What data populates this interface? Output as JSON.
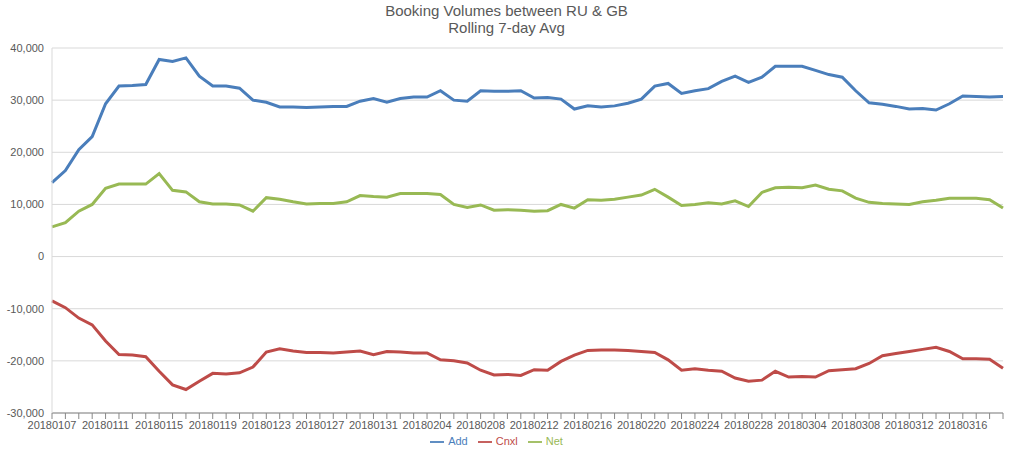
{
  "chart_data": {
    "type": "line",
    "title": "Booking Volumes between RU & GB",
    "subtitle": "Rolling 7-day Avg",
    "categories": [
      "20180107",
      null,
      null,
      null,
      "20180111",
      null,
      null,
      null,
      "20180115",
      null,
      null,
      null,
      "20180119",
      null,
      null,
      null,
      "20180123",
      null,
      null,
      null,
      "20180127",
      null,
      null,
      null,
      "20180131",
      null,
      null,
      null,
      "20180204",
      null,
      null,
      null,
      "20180208",
      null,
      null,
      null,
      "20180212",
      null,
      null,
      null,
      "20180216",
      null,
      null,
      null,
      "20180220",
      null,
      null,
      null,
      "20180224",
      null,
      null,
      null,
      "20180228",
      null,
      null,
      null,
      "20180304",
      null,
      null,
      null,
      "20180308",
      null,
      null,
      null,
      "20180312",
      null,
      null,
      null,
      "20180316",
      null,
      null,
      null
    ],
    "series": [
      {
        "name": "Add",
        "color": "#4a7ebb",
        "values": [
          14200,
          16500,
          20500,
          23000,
          29300,
          32700,
          32800,
          33000,
          37800,
          37400,
          38100,
          34600,
          32700,
          32700,
          32300,
          30000,
          29600,
          28700,
          28700,
          28600,
          28700,
          28800,
          28800,
          29800,
          30300,
          29600,
          30300,
          30600,
          30600,
          31800,
          30000,
          29800,
          31800,
          31700,
          31700,
          31800,
          30400,
          30500,
          30200,
          28300,
          28900,
          28700,
          28900,
          29400,
          30200,
          32700,
          33200,
          31300,
          31800,
          32200,
          33600,
          34600,
          33400,
          34400,
          36500,
          36500,
          36500,
          35700,
          34900,
          34400,
          31800,
          29500,
          29200,
          28800,
          28300,
          28400,
          28100,
          29300,
          30800,
          30700,
          30600,
          30700
        ]
      },
      {
        "name": "Cnxl",
        "color": "#be4b48",
        "values": [
          -8500,
          -9800,
          -11800,
          -13100,
          -16200,
          -18800,
          -18900,
          -19200,
          -22000,
          -24600,
          -25500,
          -23900,
          -22400,
          -22500,
          -22300,
          -21200,
          -18300,
          -17700,
          -18100,
          -18400,
          -18400,
          -18500,
          -18300,
          -18100,
          -18800,
          -18200,
          -18300,
          -18500,
          -18500,
          -19800,
          -20000,
          -20400,
          -21800,
          -22700,
          -22600,
          -22800,
          -21700,
          -21800,
          -20100,
          -18900,
          -18000,
          -17900,
          -17900,
          -18000,
          -18200,
          -18400,
          -19800,
          -21800,
          -21500,
          -21800,
          -22000,
          -23300,
          -23900,
          -23700,
          -22000,
          -23100,
          -23000,
          -23100,
          -21900,
          -21700,
          -21500,
          -20500,
          -19000,
          -18600,
          -18200,
          -17800,
          -17400,
          -18200,
          -19600,
          -19600,
          -19700,
          -21400
        ]
      },
      {
        "name": "Net",
        "color": "#98b954",
        "values": [
          5700,
          6500,
          8700,
          10000,
          13100,
          13900,
          13900,
          13900,
          15900,
          12700,
          12400,
          10500,
          10100,
          10100,
          9900,
          8700,
          11300,
          11000,
          10500,
          10100,
          10200,
          10200,
          10500,
          11700,
          11500,
          11400,
          12100,
          12100,
          12100,
          11900,
          10000,
          9400,
          9900,
          8900,
          9000,
          8900,
          8700,
          8800,
          10000,
          9300,
          10900,
          10800,
          11000,
          11400,
          11800,
          12900,
          11400,
          9800,
          10000,
          10300,
          10100,
          10700,
          9600,
          12300,
          13200,
          13300,
          13200,
          13700,
          12900,
          12600,
          11200,
          10400,
          10200,
          10100,
          10000,
          10500,
          10800,
          11200,
          11200,
          11200,
          10900,
          9300
        ]
      }
    ],
    "ylim": [
      -30000,
      40000
    ],
    "yticks": [
      {
        "value": -30000,
        "label": "-30,000"
      },
      {
        "value": -20000,
        "label": "-20,000"
      },
      {
        "value": -10000,
        "label": "-10,000"
      },
      0,
      {
        "value": 10000,
        "label": "10,000"
      },
      {
        "value": 20000,
        "label": "20,000"
      },
      {
        "value": 30000,
        "label": "30,000"
      },
      {
        "value": 40000,
        "label": "40,000"
      }
    ],
    "grid": true,
    "legend": "bottom"
  }
}
